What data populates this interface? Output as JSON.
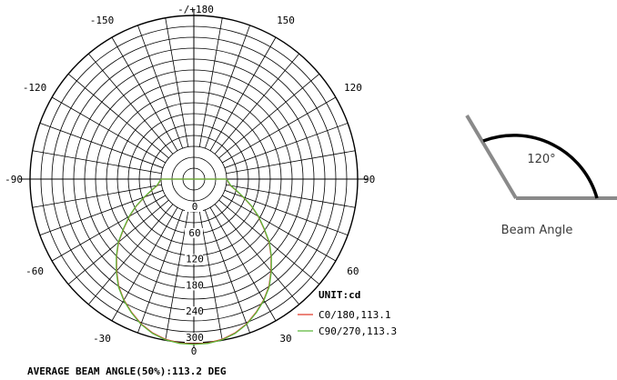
{
  "chart_data": {
    "type": "polar",
    "unit_label": "UNIT:cd",
    "angle_labels": [
      {
        "deg": 180,
        "text": "-/+180"
      },
      {
        "deg": -150,
        "text": "-150"
      },
      {
        "deg": 150,
        "text": "150"
      },
      {
        "deg": -120,
        "text": "-120"
      },
      {
        "deg": 120,
        "text": "120"
      },
      {
        "deg": -90,
        "text": "-90"
      },
      {
        "deg": 90,
        "text": "90"
      },
      {
        "deg": -60,
        "text": "-60"
      },
      {
        "deg": 60,
        "text": "60"
      },
      {
        "deg": -30,
        "text": "-30"
      },
      {
        "deg": 30,
        "text": "30"
      },
      {
        "deg": 0,
        "text": "0"
      }
    ],
    "radial_ticks": [
      0,
      60,
      120,
      180,
      240,
      300
    ],
    "r_max": 300,
    "series": [
      {
        "name": "C0/180,113.1",
        "color": "#e03a2a",
        "points": [
          [
            -90,
            0
          ],
          [
            -80,
            10
          ],
          [
            -75,
            25
          ],
          [
            -70,
            45
          ],
          [
            -65,
            70
          ],
          [
            -60,
            95
          ],
          [
            -55,
            120
          ],
          [
            -50,
            150
          ],
          [
            -45,
            175
          ],
          [
            -40,
            200
          ],
          [
            -35,
            225
          ],
          [
            -30,
            245
          ],
          [
            -25,
            262
          ],
          [
            -20,
            278
          ],
          [
            -15,
            290
          ],
          [
            -10,
            298
          ],
          [
            -5,
            302
          ],
          [
            0,
            303
          ],
          [
            5,
            302
          ],
          [
            10,
            298
          ],
          [
            15,
            290
          ],
          [
            20,
            278
          ],
          [
            25,
            262
          ],
          [
            30,
            245
          ],
          [
            35,
            225
          ],
          [
            40,
            200
          ],
          [
            45,
            175
          ],
          [
            50,
            150
          ],
          [
            55,
            120
          ],
          [
            60,
            95
          ],
          [
            65,
            70
          ],
          [
            70,
            45
          ],
          [
            75,
            25
          ],
          [
            80,
            10
          ],
          [
            90,
            0
          ]
        ]
      },
      {
        "name": "C90/270,113.3",
        "color": "#5cb83a",
        "points": [
          [
            -90,
            0
          ],
          [
            -80,
            11
          ],
          [
            -75,
            26
          ],
          [
            -70,
            46
          ],
          [
            -65,
            71
          ],
          [
            -60,
            96
          ],
          [
            -55,
            121
          ],
          [
            -50,
            151
          ],
          [
            -45,
            176
          ],
          [
            -40,
            201
          ],
          [
            -35,
            226
          ],
          [
            -30,
            246
          ],
          [
            -25,
            263
          ],
          [
            -20,
            279
          ],
          [
            -15,
            291
          ],
          [
            -10,
            299
          ],
          [
            -5,
            303
          ],
          [
            0,
            304
          ],
          [
            5,
            303
          ],
          [
            10,
            299
          ],
          [
            15,
            291
          ],
          [
            20,
            279
          ],
          [
            25,
            263
          ],
          [
            30,
            246
          ],
          [
            35,
            226
          ],
          [
            40,
            201
          ],
          [
            45,
            176
          ],
          [
            50,
            151
          ],
          [
            55,
            121
          ],
          [
            60,
            96
          ],
          [
            65,
            71
          ],
          [
            70,
            46
          ],
          [
            75,
            26
          ],
          [
            80,
            11
          ],
          [
            90,
            0
          ]
        ]
      }
    ],
    "caption": "AVERAGE BEAM ANGLE(50%):113.2 DEG"
  },
  "beam_diagram": {
    "angle_text": "120°",
    "label": "Beam Angle"
  }
}
